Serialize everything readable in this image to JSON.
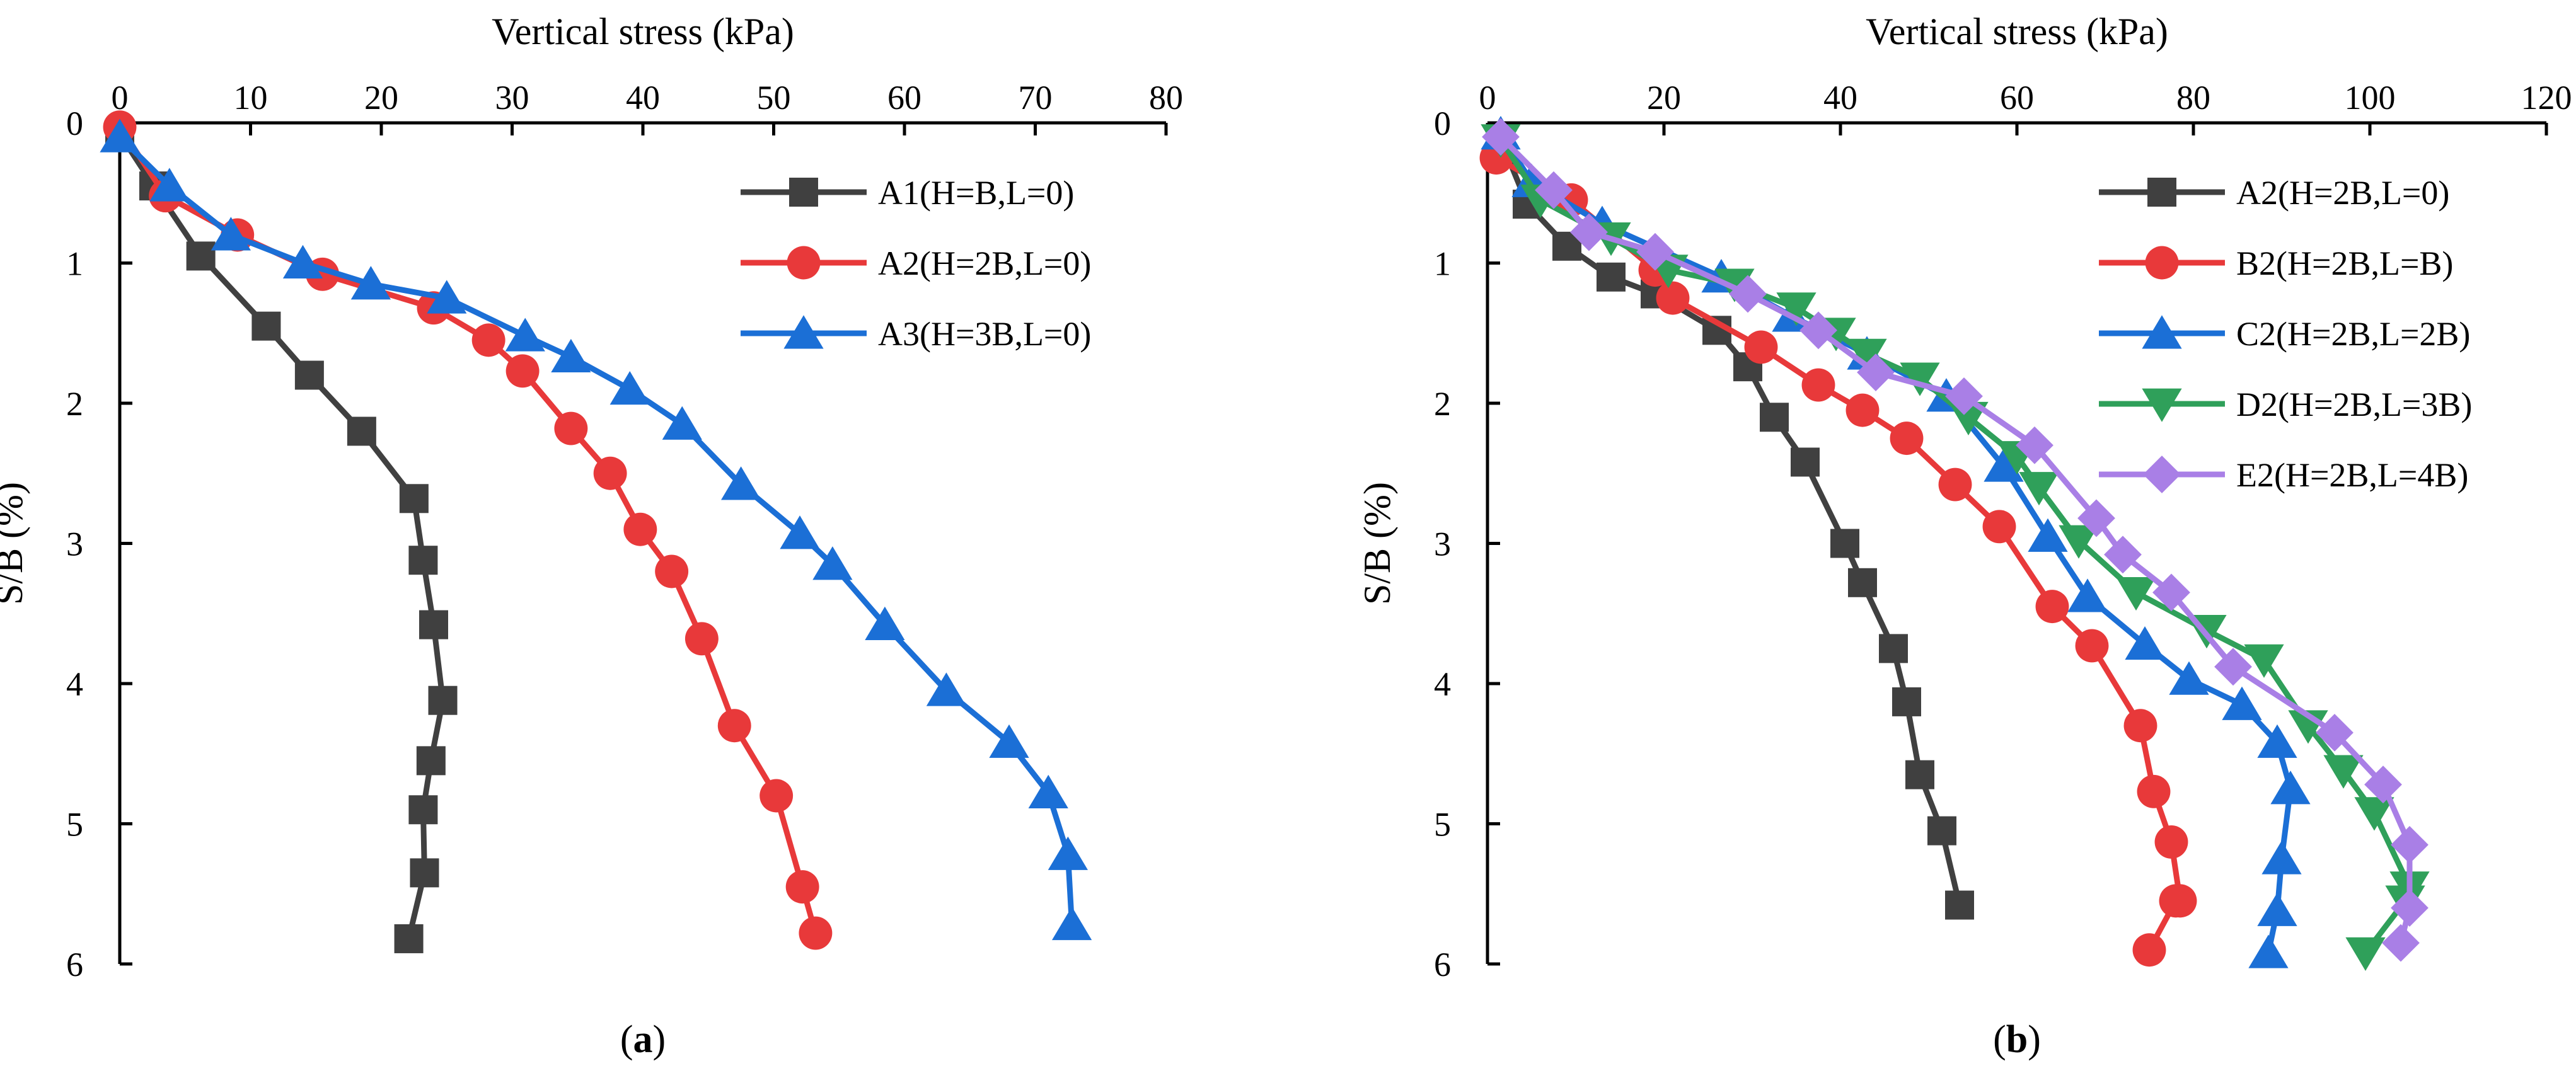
{
  "figure": {
    "panels": [
      {
        "id": "a",
        "label_prefix": "(",
        "label_letter": "a",
        "label_suffix": ")"
      },
      {
        "id": "b",
        "label_prefix": "(",
        "label_letter": "b",
        "label_suffix": ")"
      }
    ]
  },
  "chart_data": [
    {
      "type": "line",
      "panel": "a",
      "title": "",
      "xlabel": "Vertical stress (kPa)",
      "ylabel": "S/B (%)",
      "x_axis_position": "top",
      "y_axis_inverted": true,
      "xlim": [
        0,
        80
      ],
      "ylim": [
        0,
        6
      ],
      "xticks": [
        0,
        10,
        20,
        30,
        40,
        50,
        60,
        70,
        80
      ],
      "yticks": [
        0,
        1,
        2,
        3,
        4,
        5,
        6
      ],
      "legend_position": "top-right",
      "series": [
        {
          "name": "A1(H=B,L=0)",
          "color": "#404040",
          "marker": "square",
          "x": [
            0,
            2.6,
            6.2,
            11.2,
            14.5,
            18.5,
            22.5,
            23.2,
            24,
            24.7,
            23.8,
            23.2,
            23.3,
            22.1
          ],
          "y": [
            0.08,
            0.45,
            0.95,
            1.45,
            1.8,
            2.2,
            2.68,
            3.12,
            3.58,
            4.12,
            4.55,
            4.9,
            5.35,
            5.82
          ]
        },
        {
          "name": "A2(H=2B,L=0)",
          "color": "#e8393a",
          "marker": "circle",
          "x": [
            0,
            3.5,
            9,
            15.5,
            24,
            28.2,
            30.8,
            34.5,
            37.5,
            39.8,
            42.2,
            44.5,
            47,
            50.2,
            52.2,
            53.2
          ],
          "y": [
            0.03,
            0.52,
            0.8,
            1.08,
            1.32,
            1.55,
            1.77,
            2.18,
            2.5,
            2.9,
            3.2,
            3.68,
            4.3,
            4.8,
            5.45,
            5.78
          ]
        },
        {
          "name": "A3(H=3B,L=0)",
          "color": "#1b6fd6",
          "marker": "triangle-up",
          "x": [
            0,
            3.8,
            8.5,
            14,
            19.2,
            25,
            31,
            34.5,
            39,
            43,
            47.5,
            52,
            54.5,
            58.5,
            63.2,
            68,
            71,
            72.5,
            72.8
          ],
          "y": [
            0.1,
            0.45,
            0.8,
            1.0,
            1.15,
            1.25,
            1.52,
            1.67,
            1.9,
            2.15,
            2.58,
            2.93,
            3.15,
            3.58,
            4.05,
            4.42,
            4.78,
            5.22,
            5.72
          ]
        }
      ]
    },
    {
      "type": "line",
      "panel": "b",
      "title": "",
      "xlabel": "Vertical stress (kPa)",
      "ylabel": "S/B (%)",
      "x_axis_position": "top",
      "y_axis_inverted": true,
      "xlim": [
        0,
        120
      ],
      "ylim": [
        0,
        6
      ],
      "xticks": [
        0,
        20,
        40,
        60,
        80,
        100,
        120
      ],
      "yticks": [
        0,
        1,
        2,
        3,
        4,
        5,
        6
      ],
      "legend_position": "top-right",
      "series": [
        {
          "name": "A2(H=2B,L=0)",
          "color": "#404040",
          "marker": "square",
          "x": [
            1.5,
            4.5,
            9,
            14,
            19,
            26,
            29.5,
            32.5,
            36,
            40.5,
            42.5,
            46,
            47.5,
            49,
            51.5,
            53.5
          ],
          "y": [
            0.12,
            0.58,
            0.88,
            1.1,
            1.22,
            1.48,
            1.74,
            2.1,
            2.42,
            3.0,
            3.28,
            3.75,
            4.13,
            4.65,
            5.05,
            5.58
          ]
        },
        {
          "name": "B2(H=2B,L=B)",
          "color": "#e8393a",
          "marker": "circle",
          "x": [
            1,
            9.5,
            19,
            21,
            31,
            37.5,
            42.5,
            47.5,
            53,
            58,
            64,
            68.5,
            74,
            75.5,
            77.5,
            78.5,
            78,
            75
          ],
          "y": [
            0.25,
            0.55,
            1.05,
            1.25,
            1.6,
            1.87,
            2.05,
            2.25,
            2.58,
            2.88,
            3.45,
            3.73,
            4.3,
            4.77,
            5.13,
            5.55,
            5.55,
            5.9
          ]
        },
        {
          "name": "C2(H=2B,L=2B)",
          "color": "#1b6fd6",
          "marker": "triangle-up",
          "x": [
            1.5,
            5,
            13,
            26.5,
            34.5,
            43,
            52,
            58.5,
            63.5,
            68,
            74.5,
            79.5,
            85.5,
            89.5,
            91,
            90,
            89.5,
            88.5
          ],
          "y": [
            0.08,
            0.42,
            0.72,
            1.1,
            1.38,
            1.65,
            1.95,
            2.45,
            2.95,
            3.38,
            3.72,
            3.97,
            4.15,
            4.42,
            4.75,
            5.25,
            5.62,
            5.92
          ]
        },
        {
          "name": "D2(H=2B,L=3B)",
          "color": "#2fa05a",
          "marker": "triangle-down",
          "x": [
            1.5,
            6,
            14,
            20.5,
            28,
            35,
            39.5,
            43,
            49,
            54.5,
            60,
            62.5,
            67,
            73.5,
            81.5,
            88,
            93,
            97,
            100.5,
            104.5,
            104,
            99.5
          ],
          "y": [
            0.12,
            0.55,
            0.82,
            1.05,
            1.15,
            1.32,
            1.5,
            1.65,
            1.82,
            2.1,
            2.38,
            2.6,
            2.98,
            3.35,
            3.62,
            3.83,
            4.3,
            4.62,
            4.92,
            5.45,
            5.55,
            5.92
          ]
        },
        {
          "name": "E2(H=2B,L=4B)",
          "color": "#a97fe6",
          "marker": "diamond",
          "x": [
            1.5,
            7.5,
            11.5,
            19,
            29.5,
            37.5,
            44,
            54,
            62,
            69,
            72,
            77.5,
            84.5,
            96,
            101.5,
            104.5,
            104.5,
            103.5
          ],
          "y": [
            0.1,
            0.48,
            0.78,
            0.92,
            1.22,
            1.48,
            1.78,
            1.95,
            2.3,
            2.82,
            3.08,
            3.35,
            3.88,
            4.35,
            4.72,
            5.15,
            5.6,
            5.85
          ]
        }
      ]
    }
  ]
}
